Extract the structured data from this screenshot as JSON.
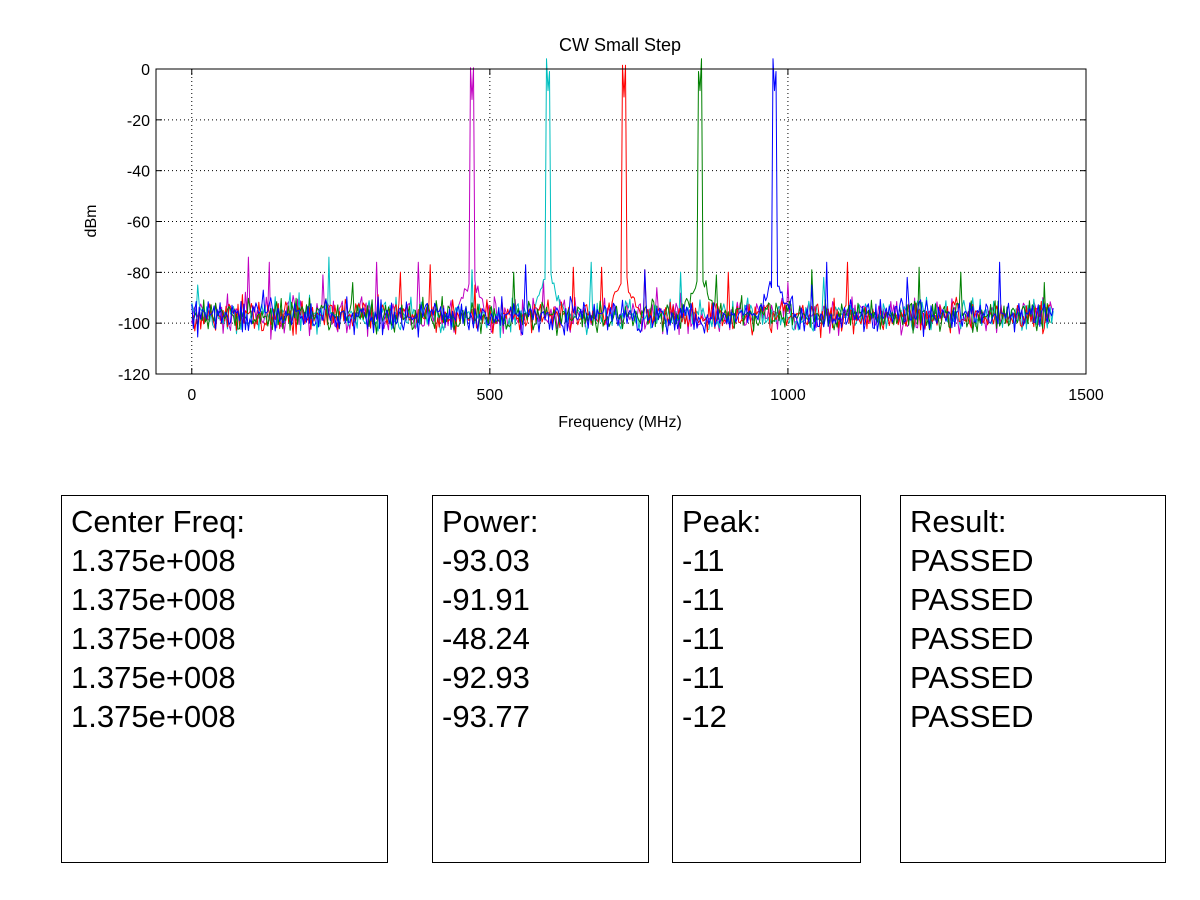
{
  "chart_data": {
    "type": "line",
    "title": "CW Small Step",
    "xlabel": "Frequency (MHz)",
    "ylabel": "dBm",
    "xlim": [
      -60,
      1500
    ],
    "ylim": [
      -120,
      0
    ],
    "xticks": [
      0,
      500,
      1000,
      1500
    ],
    "yticks": [
      0,
      -20,
      -40,
      -60,
      -80,
      -100,
      -120
    ],
    "grid": true,
    "noise_floor": -97,
    "series": [
      {
        "color": "#c000c0",
        "x_range": [
          0,
          1445
        ],
        "peak_x": 470,
        "peak_y": -12,
        "spurs": [
          [
            95,
            -74
          ],
          [
            130,
            -76
          ],
          [
            220,
            -81
          ],
          [
            310,
            -76
          ],
          [
            380,
            -76
          ],
          [
            590,
            -83
          ],
          [
            780,
            -86
          ],
          [
            1000,
            -84
          ]
        ]
      },
      {
        "color": "#00bfbf",
        "x_range": [
          0,
          1445
        ],
        "peak_x": 598,
        "peak_y": -11,
        "spurs": [
          [
            10,
            -85
          ],
          [
            180,
            -88
          ],
          [
            230,
            -74
          ],
          [
            470,
            -79
          ],
          [
            670,
            -76
          ],
          [
            820,
            -80
          ],
          [
            1060,
            -82
          ],
          [
            1310,
            -90
          ]
        ]
      },
      {
        "color": "#ff0000",
        "x_range": [
          0,
          1440
        ],
        "peak_x": 725,
        "peak_y": -11,
        "spurs": [
          [
            350,
            -80
          ],
          [
            400,
            -77
          ],
          [
            475,
            -85
          ],
          [
            640,
            -78
          ],
          [
            688,
            -78
          ],
          [
            760,
            -79
          ],
          [
            900,
            -80
          ],
          [
            1100,
            -76
          ]
        ]
      },
      {
        "color": "#008000",
        "x_range": [
          0,
          1440
        ],
        "peak_x": 852,
        "peak_y": -11,
        "spurs": [
          [
            270,
            -84
          ],
          [
            540,
            -80
          ],
          [
            880,
            -81
          ],
          [
            1040,
            -79
          ],
          [
            1220,
            -78
          ],
          [
            1290,
            -80
          ],
          [
            1430,
            -84
          ]
        ]
      },
      {
        "color": "#0000ff",
        "x_range": [
          0,
          1445
        ],
        "peak_x": 978,
        "peak_y": -11,
        "spurs": [
          [
            120,
            -87
          ],
          [
            560,
            -77
          ],
          [
            760,
            -79
          ],
          [
            1040,
            -85
          ],
          [
            1065,
            -76
          ],
          [
            1200,
            -82
          ],
          [
            1355,
            -76
          ]
        ]
      }
    ]
  },
  "panels": {
    "center_freq": {
      "header": "Center Freq:",
      "values": [
        "1.375e+008",
        "1.375e+008",
        "1.375e+008",
        "1.375e+008",
        "1.375e+008"
      ]
    },
    "power": {
      "header": "Power:",
      "values": [
        "-93.03",
        "-91.91",
        "-48.24",
        "-92.93",
        "-93.77"
      ]
    },
    "peak": {
      "header": "Peak:",
      "values": [
        "-11",
        "-11",
        "-11",
        "-11",
        "-12"
      ]
    },
    "result": {
      "header": "Result:",
      "values": [
        "PASSED",
        "PASSED",
        "PASSED",
        "PASSED",
        "PASSED"
      ]
    }
  }
}
